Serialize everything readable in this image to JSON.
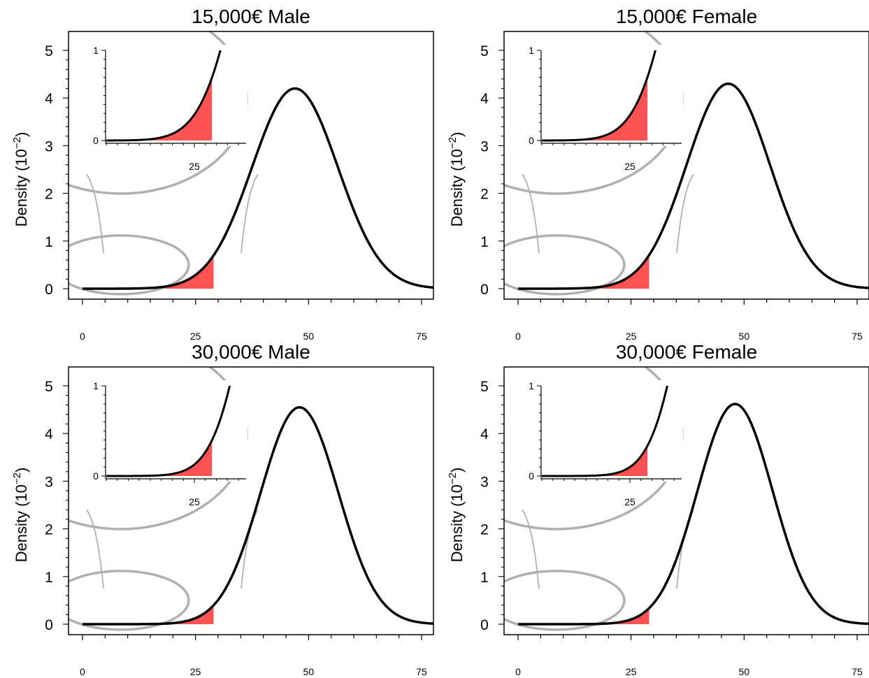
{
  "colors": {
    "shade": "#ff5252",
    "curve": "#000000",
    "lens": "#b0b0b0",
    "connector": "#b0b0b0"
  },
  "ylabel_base": "Density (10",
  "ylabel_exp": "−2",
  "ylabel_close": ")",
  "chart_data": [
    {
      "type": "area",
      "title": "15,000€ Male",
      "ylabel": "Density (10⁻²)",
      "xlim": [
        -6,
        78
      ],
      "ylim": [
        -0.2,
        5.4
      ],
      "xticks": [
        "0",
        "25",
        "50",
        "75"
      ],
      "yticks": [
        "0",
        "1",
        "2",
        "3",
        "4",
        "5"
      ],
      "curve": {
        "mean": 47,
        "sd": 9.5,
        "peak": 4.2
      },
      "shaded_upto": 29,
      "inset": {
        "x_range": [
          5,
          35
        ],
        "y_range": [
          0,
          1
        ],
        "xticks": [
          "25"
        ],
        "yticks": [
          "0",
          "1"
        ]
      }
    },
    {
      "type": "area",
      "title": "15,000€ Female",
      "ylabel": "Density (10⁻²)",
      "xlim": [
        -6,
        78
      ],
      "ylim": [
        -0.2,
        5.4
      ],
      "xticks": [
        "0",
        "25",
        "50",
        "75"
      ],
      "yticks": [
        "0",
        "1",
        "2",
        "3",
        "4",
        "5"
      ],
      "curve": {
        "mean": 46.5,
        "sd": 9.2,
        "peak": 4.3
      },
      "shaded_upto": 29,
      "inset": {
        "x_range": [
          5,
          35
        ],
        "y_range": [
          0,
          1
        ],
        "xticks": [
          "25"
        ],
        "yticks": [
          "0",
          "1"
        ]
      }
    },
    {
      "type": "area",
      "title": "30,000€ Male",
      "ylabel": "Density (10⁻²)",
      "xlim": [
        -6,
        78
      ],
      "ylim": [
        -0.2,
        5.4
      ],
      "xticks": [
        "0",
        "25",
        "50",
        "75"
      ],
      "yticks": [
        "0",
        "1",
        "2",
        "3",
        "4",
        "5"
      ],
      "curve": {
        "mean": 48,
        "sd": 8.6,
        "peak": 4.55
      },
      "shaded_upto": 29,
      "inset": {
        "x_range": [
          5,
          35
        ],
        "y_range": [
          0,
          1
        ],
        "xticks": [
          "25"
        ],
        "yticks": [
          "0",
          "1"
        ]
      }
    },
    {
      "type": "area",
      "title": "30,000€ Female",
      "ylabel": "Density (10⁻²)",
      "xlim": [
        -6,
        78
      ],
      "ylim": [
        -0.2,
        5.4
      ],
      "xticks": [
        "0",
        "25",
        "50",
        "75"
      ],
      "yticks": [
        "0",
        "1",
        "2",
        "3",
        "4",
        "5"
      ],
      "curve": {
        "mean": 48,
        "sd": 8.3,
        "peak": 4.62
      },
      "shaded_upto": 29,
      "inset": {
        "x_range": [
          5,
          35
        ],
        "y_range": [
          0,
          1
        ],
        "xticks": [
          "25"
        ],
        "yticks": [
          "0",
          "1"
        ]
      }
    }
  ]
}
